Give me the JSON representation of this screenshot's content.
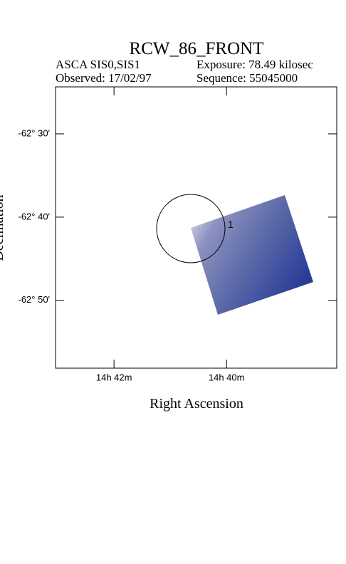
{
  "chart_data": {
    "type": "image",
    "title": "RCW_86_FRONT",
    "instrument": "ASCA SIS0,SIS1",
    "exposure": "Exposure: 78.49 kilosec",
    "observed": "Observed: 17/02/97",
    "sequence": "Sequence: 55045000",
    "x_label": "Right Ascension",
    "y_label": "Declination",
    "xlim": [
      43.04,
      38.04
    ],
    "ylim": [
      -62.969,
      -62.406
    ],
    "xticks": [
      {
        "value": 42,
        "label": "14h 42m"
      },
      {
        "value": 40,
        "label": "14h 40m"
      }
    ],
    "yticks": [
      {
        "value": -62.5,
        "label": "-62° 30′"
      },
      {
        "value": -62.6667,
        "label": "-62° 40′"
      },
      {
        "value": -62.8333,
        "label": "-62° 50′"
      }
    ],
    "region_label": "1"
  }
}
